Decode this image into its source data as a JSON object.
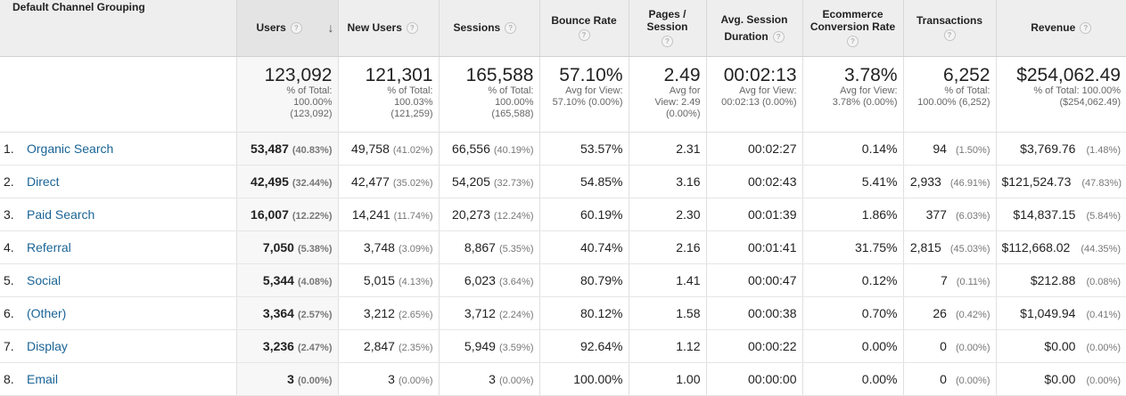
{
  "headers": {
    "dimension": "Default Channel Grouping",
    "users": "Users",
    "new_users": "New Users",
    "sessions": "Sessions",
    "bounce_rate": "Bounce Rate",
    "pages_session_1": "Pages /",
    "pages_session_2": "Session",
    "avg_duration_1": "Avg. Session",
    "avg_duration_2": "Duration",
    "ecommerce_1": "Ecommerce",
    "ecommerce_2": "Conversion Rate",
    "transactions": "Transactions",
    "revenue": "Revenue",
    "help_glyph": "?",
    "sort_glyph": "↓"
  },
  "totals": {
    "users": {
      "value": "123,092",
      "l1": "% of Total:",
      "l2": "100.00%",
      "l3": "(123,092)"
    },
    "new_users": {
      "value": "121,301",
      "l1": "% of Total:",
      "l2": "100.03%",
      "l3": "(121,259)"
    },
    "sessions": {
      "value": "165,588",
      "l1": "% of Total:",
      "l2": "100.00%",
      "l3": "(165,588)"
    },
    "bounce_rate": {
      "value": "57.10%",
      "l1": "Avg for View:",
      "l2": "57.10% (0.00%)"
    },
    "pages_session": {
      "value": "2.49",
      "l1": "Avg for",
      "l2": "View: 2.49",
      "l3": "(0.00%)"
    },
    "avg_duration": {
      "value": "00:02:13",
      "l1": "Avg for View:",
      "l2": "00:02:13 (0.00%)"
    },
    "ecommerce": {
      "value": "3.78%",
      "l1": "Avg for View:",
      "l2": "3.78% (0.00%)"
    },
    "transactions": {
      "value": "6,252",
      "l1": "% of Total:",
      "l2": "100.00% (6,252)"
    },
    "revenue": {
      "value": "$254,062.49",
      "l1": "% of Total: 100.00%",
      "l2": "($254,062.49)"
    }
  },
  "rows": [
    {
      "num": "1.",
      "channel": "Organic Search",
      "users": "53,487",
      "users_pct": "(40.83%)",
      "new_users": "49,758",
      "new_users_pct": "(41.02%)",
      "sessions": "66,556",
      "sessions_pct": "(40.19%)",
      "bounce": "53.57%",
      "pages": "2.31",
      "duration": "00:02:27",
      "conv": "0.14%",
      "trans": "94",
      "trans_pct": "(1.50%)",
      "revenue": "$3,769.76",
      "revenue_pct": "(1.48%)"
    },
    {
      "num": "2.",
      "channel": "Direct",
      "users": "42,495",
      "users_pct": "(32.44%)",
      "new_users": "42,477",
      "new_users_pct": "(35.02%)",
      "sessions": "54,205",
      "sessions_pct": "(32.73%)",
      "bounce": "54.85%",
      "pages": "3.16",
      "duration": "00:02:43",
      "conv": "5.41%",
      "trans": "2,933",
      "trans_pct": "(46.91%)",
      "revenue": "$121,524.73",
      "revenue_pct": "(47.83%)"
    },
    {
      "num": "3.",
      "channel": "Paid Search",
      "users": "16,007",
      "users_pct": "(12.22%)",
      "new_users": "14,241",
      "new_users_pct": "(11.74%)",
      "sessions": "20,273",
      "sessions_pct": "(12.24%)",
      "bounce": "60.19%",
      "pages": "2.30",
      "duration": "00:01:39",
      "conv": "1.86%",
      "trans": "377",
      "trans_pct": "(6.03%)",
      "revenue": "$14,837.15",
      "revenue_pct": "(5.84%)"
    },
    {
      "num": "4.",
      "channel": "Referral",
      "users": "7,050",
      "users_pct": "(5.38%)",
      "new_users": "3,748",
      "new_users_pct": "(3.09%)",
      "sessions": "8,867",
      "sessions_pct": "(5.35%)",
      "bounce": "40.74%",
      "pages": "2.16",
      "duration": "00:01:41",
      "conv": "31.75%",
      "trans": "2,815",
      "trans_pct": "(45.03%)",
      "revenue": "$112,668.02",
      "revenue_pct": "(44.35%)"
    },
    {
      "num": "5.",
      "channel": "Social",
      "users": "5,344",
      "users_pct": "(4.08%)",
      "new_users": "5,015",
      "new_users_pct": "(4.13%)",
      "sessions": "6,023",
      "sessions_pct": "(3.64%)",
      "bounce": "80.79%",
      "pages": "1.41",
      "duration": "00:00:47",
      "conv": "0.12%",
      "trans": "7",
      "trans_pct": "(0.11%)",
      "revenue": "$212.88",
      "revenue_pct": "(0.08%)"
    },
    {
      "num": "6.",
      "channel": "(Other)",
      "users": "3,364",
      "users_pct": "(2.57%)",
      "new_users": "3,212",
      "new_users_pct": "(2.65%)",
      "sessions": "3,712",
      "sessions_pct": "(2.24%)",
      "bounce": "80.12%",
      "pages": "1.58",
      "duration": "00:00:38",
      "conv": "0.70%",
      "trans": "26",
      "trans_pct": "(0.42%)",
      "revenue": "$1,049.94",
      "revenue_pct": "(0.41%)"
    },
    {
      "num": "7.",
      "channel": "Display",
      "users": "3,236",
      "users_pct": "(2.47%)",
      "new_users": "2,847",
      "new_users_pct": "(2.35%)",
      "sessions": "5,949",
      "sessions_pct": "(3.59%)",
      "bounce": "92.64%",
      "pages": "1.12",
      "duration": "00:00:22",
      "conv": "0.00%",
      "trans": "0",
      "trans_pct": "(0.00%)",
      "revenue": "$0.00",
      "revenue_pct": "(0.00%)"
    },
    {
      "num": "8.",
      "channel": "Email",
      "users": "3",
      "users_pct": "(0.00%)",
      "new_users": "3",
      "new_users_pct": "(0.00%)",
      "sessions": "3",
      "sessions_pct": "(0.00%)",
      "bounce": "100.00%",
      "pages": "1.00",
      "duration": "00:00:00",
      "conv": "0.00%",
      "trans": "0",
      "trans_pct": "(0.00%)",
      "revenue": "$0.00",
      "revenue_pct": "(0.00%)"
    }
  ]
}
